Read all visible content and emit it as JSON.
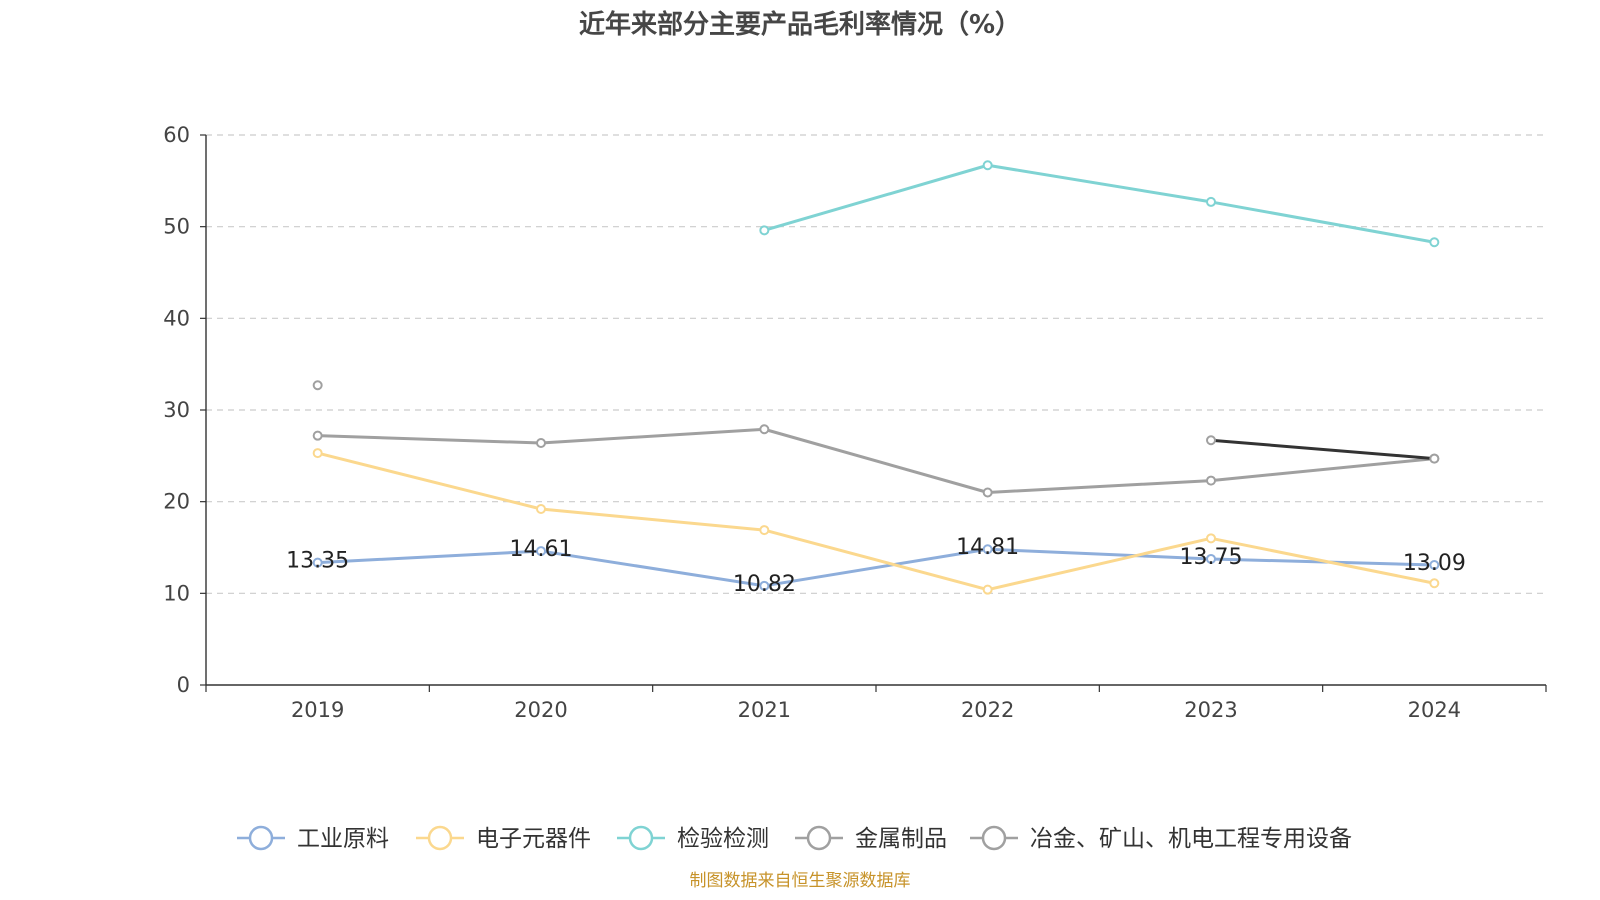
{
  "chart_data": {
    "type": "line",
    "title": "近年来部分主要产品毛利率情况（%）",
    "xlabel": "",
    "ylabel": "",
    "categories": [
      "2019",
      "2020",
      "2021",
      "2022",
      "2023",
      "2024"
    ],
    "ylim": [
      0,
      60
    ],
    "yticks": [
      0,
      10,
      20,
      30,
      40,
      50,
      60
    ],
    "grid": true,
    "legend_position": "bottom",
    "series": [
      {
        "name": "工业原料",
        "color": "#8eaedb",
        "values": [
          13.35,
          14.61,
          10.82,
          14.81,
          13.75,
          13.09
        ],
        "labels": [
          "13.35",
          "14.61",
          "10.82",
          "14.81",
          "13.75",
          "13.09"
        ]
      },
      {
        "name": "电子元器件",
        "color": "#fbd88e",
        "values": [
          25.3,
          19.2,
          16.9,
          10.4,
          16.0,
          11.1
        ]
      },
      {
        "name": "检验检测",
        "color": "#7fd3d3",
        "values": [
          null,
          null,
          49.6,
          56.7,
          52.7,
          48.3
        ]
      },
      {
        "name": "金属制品",
        "color": "#a0a0a0",
        "values": [
          27.2,
          26.4,
          27.9,
          21.0,
          22.3,
          24.7
        ]
      },
      {
        "name": "冶金、矿山、机电工程专用设备",
        "color": "#a0a0a0",
        "values": [
          32.7,
          null,
          null,
          null,
          26.7,
          24.7
        ]
      }
    ]
  },
  "source_note": "制图数据来自恒生聚源数据库"
}
